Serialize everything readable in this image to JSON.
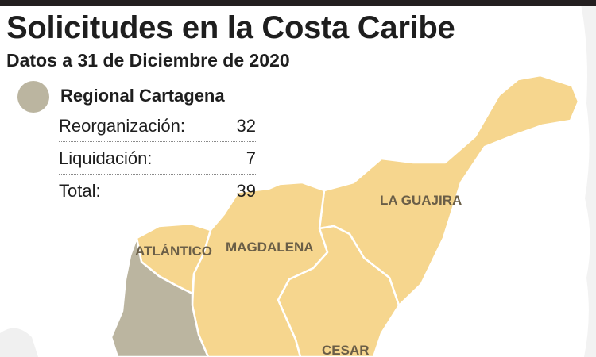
{
  "header": {
    "title": "Solicitudes en la Costa Caribe",
    "subtitle": "Datos a 31 de Diciembre de 2020"
  },
  "legend": {
    "swatch_color": "#bbb5a0",
    "title": "Regional Cartagena",
    "rows": [
      {
        "label": "Reorganización:",
        "value": "32"
      },
      {
        "label": "Liquidación:",
        "value": "7"
      },
      {
        "label": "Total:",
        "value": "39"
      }
    ]
  },
  "map": {
    "colors": {
      "department_fill": "#f6d68e",
      "regional_fill": "#bbb5a0",
      "border": "#ffffff"
    },
    "regions": [
      {
        "id": "la-guajira",
        "label": "LA GUAJIRA",
        "group": "department"
      },
      {
        "id": "magdalena",
        "label": "MAGDALENA",
        "group": "department"
      },
      {
        "id": "atlantico",
        "label": "ATLÁNTICO",
        "group": "department"
      },
      {
        "id": "cesar",
        "label": "CESAR",
        "group": "department"
      },
      {
        "id": "bolivar",
        "label": "",
        "group": "regional"
      }
    ]
  }
}
